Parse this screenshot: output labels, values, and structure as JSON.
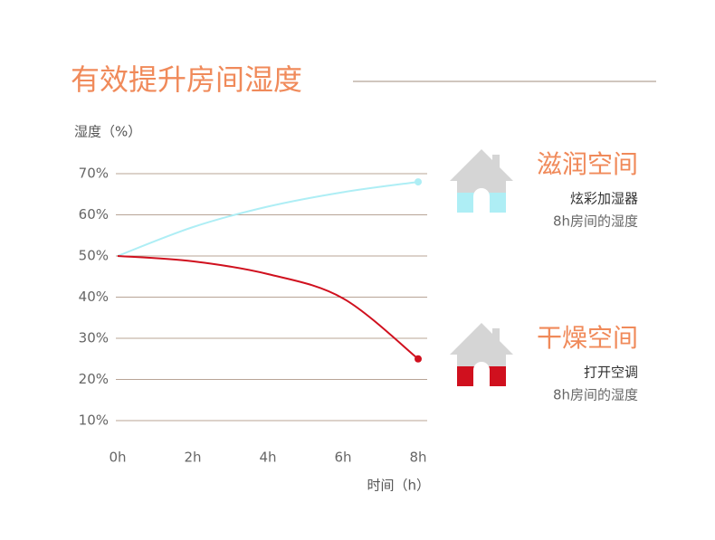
{
  "chart_data": {
    "type": "line",
    "title": "有效提升房间湿度",
    "y_label": "湿度（%）",
    "x_label": "时间（h）",
    "x": [
      0,
      2,
      4,
      6,
      8
    ],
    "xlim": [
      0,
      8
    ],
    "xticks": [
      {
        "value": 0,
        "label": "0h"
      },
      {
        "value": 2,
        "label": "2h"
      },
      {
        "value": 4,
        "label": "4h"
      },
      {
        "value": 6,
        "label": "6h"
      },
      {
        "value": 8,
        "label": "8h"
      }
    ],
    "ylim": [
      5,
      72.5
    ],
    "yticks": [
      {
        "value": 10,
        "label": "10%"
      },
      {
        "value": 20,
        "label": "20%"
      },
      {
        "value": 30,
        "label": "30%"
      },
      {
        "value": 40,
        "label": "40%"
      },
      {
        "value": 50,
        "label": "50%"
      },
      {
        "value": 60,
        "label": "60%"
      },
      {
        "value": 70,
        "label": "70%"
      }
    ],
    "grid": true,
    "series": [
      {
        "name": "滋润空间",
        "device": "炫彩加湿器",
        "note": "8h房间的湿度",
        "color": "#aeeef5",
        "values": [
          50,
          57,
          62,
          65.5,
          68
        ]
      },
      {
        "name": "干燥空间",
        "device": "打开空调",
        "note": "8h房间的湿度",
        "color": "#d0101e",
        "values": [
          50,
          48.7,
          45.6,
          39.7,
          25
        ]
      }
    ]
  }
}
